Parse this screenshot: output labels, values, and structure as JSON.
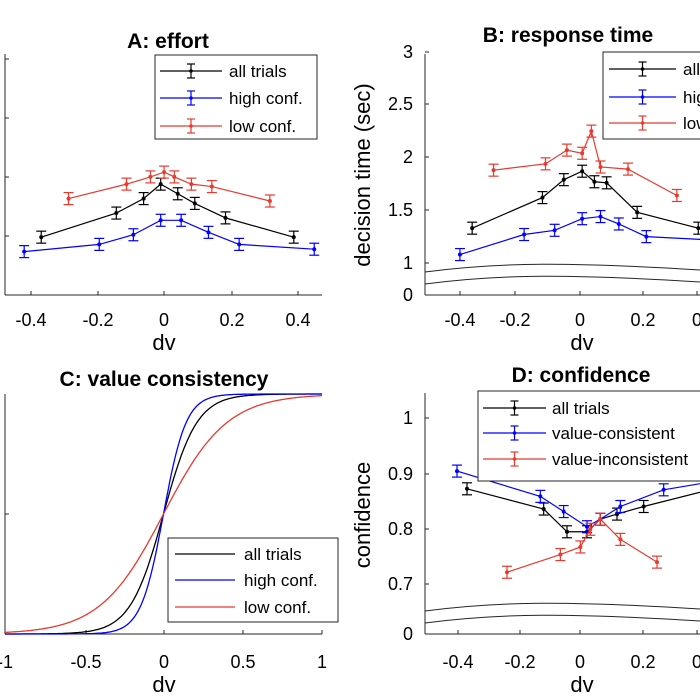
{
  "panels": {
    "A": {
      "title": "A: effort"
    },
    "B": {
      "title": "B: response time"
    },
    "C": {
      "title": "C: value consistency"
    },
    "D": {
      "title": "D: confidence"
    }
  },
  "chart_data": [
    {
      "panel": "A",
      "type": "line",
      "title": "A: effort",
      "xlabel": "dv",
      "ylabel": "",
      "xlim": [
        -0.5,
        0.5
      ],
      "ylim": [
        0,
        5
      ],
      "xticks": [
        "-0.4",
        "-0.2",
        "0",
        "0.2",
        "0.4"
      ],
      "legend_position": "top-right",
      "series": [
        {
          "name": "all trials",
          "color": "#000000",
          "x": [
            -0.37,
            -0.15,
            -0.07,
            -0.02,
            0.03,
            0.08,
            0.17,
            0.37
          ],
          "y": [
            1.2,
            1.7,
            2.0,
            2.3,
            2.1,
            1.9,
            1.6,
            1.2
          ]
        },
        {
          "name": "high conf.",
          "color": "#0000ff",
          "x": [
            -0.42,
            -0.2,
            -0.1,
            -0.02,
            0.04,
            0.12,
            0.21,
            0.43
          ],
          "y": [
            0.9,
            1.05,
            1.25,
            1.55,
            1.55,
            1.3,
            1.05,
            0.95
          ]
        },
        {
          "name": "low conf.",
          "color": "#e8392e",
          "x": [
            -0.29,
            -0.12,
            -0.05,
            -0.01,
            0.02,
            0.07,
            0.13,
            0.3
          ],
          "y": [
            2.0,
            2.3,
            2.45,
            2.55,
            2.45,
            2.3,
            2.25,
            1.95
          ]
        }
      ]
    },
    {
      "panel": "B",
      "type": "line",
      "title": "B: response time",
      "xlabel": "dv",
      "ylabel": "decision time (sec)",
      "xlim": [
        -0.5,
        0.38
      ],
      "ylim": [
        0,
        3
      ],
      "yticks": [
        "0",
        "1",
        "1.5",
        "2",
        "2.5",
        "3"
      ],
      "xticks": [
        "-0.4",
        "-0.2",
        "0",
        "0.2",
        "0"
      ],
      "axis_break": true,
      "legend_position": "top-right",
      "series": [
        {
          "name": "all trials",
          "color": "#000000",
          "x": [
            -0.37,
            -0.14,
            -0.07,
            -0.01,
            0.03,
            0.07,
            0.17,
            0.37
          ],
          "y": [
            1.33,
            1.62,
            1.79,
            1.87,
            1.77,
            1.76,
            1.48,
            1.33
          ]
        },
        {
          "name": "high conf.",
          "color": "#0000ff",
          "x": [
            -0.41,
            -0.2,
            -0.1,
            -0.01,
            0.05,
            0.11,
            0.2,
            0.4
          ],
          "y": [
            1.08,
            1.27,
            1.31,
            1.42,
            1.44,
            1.37,
            1.25,
            1.22
          ]
        },
        {
          "name": "low conf.",
          "color": "#e8392e",
          "x": [
            -0.3,
            -0.13,
            -0.06,
            -0.01,
            0.02,
            0.05,
            0.14,
            0.3
          ],
          "y": [
            1.88,
            1.94,
            2.07,
            2.04,
            2.25,
            1.91,
            1.89,
            1.64
          ]
        }
      ]
    },
    {
      "panel": "C",
      "type": "line",
      "title": "C: value consistency",
      "xlabel": "dv",
      "ylabel": "",
      "xlim": [
        -1,
        1
      ],
      "ylim": [
        0,
        1
      ],
      "xticks": [
        "-1",
        "-0.5",
        "0",
        "0.5",
        "1"
      ],
      "legend_position": "bottom-right",
      "series": [
        {
          "name": "all trials",
          "color": "#000000",
          "slope": 9.5
        },
        {
          "name": "high conf.",
          "color": "#0000ff",
          "slope": 14
        },
        {
          "name": "low conf.",
          "color": "#e8392e",
          "slope": 5
        }
      ]
    },
    {
      "panel": "D",
      "type": "line",
      "title": "D: confidence",
      "xlabel": "dv",
      "ylabel": "confidence",
      "xlim": [
        -0.5,
        0.38
      ],
      "ylim": [
        0,
        1.05
      ],
      "yticks": [
        "0",
        "0.7",
        "0.8",
        "0.9",
        "1"
      ],
      "xticks": [
        "-0.4",
        "-0.2",
        "0",
        "0.2",
        "0"
      ],
      "axis_break": true,
      "legend_position": "top-right",
      "series": [
        {
          "name": "all trials",
          "color": "#000000",
          "x": [
            -0.37,
            -0.14,
            -0.07,
            -0.01,
            0.03,
            0.08,
            0.16,
            0.4
          ],
          "y": [
            0.86,
            0.82,
            0.775,
            0.775,
            0.8,
            0.81,
            0.825,
            0.865
          ]
        },
        {
          "name": "value-consistent",
          "color": "#0000ff",
          "x": [
            -0.4,
            -0.15,
            -0.08,
            -0.01,
            0.03,
            0.09,
            0.22,
            0.4
          ],
          "y": [
            0.895,
            0.845,
            0.815,
            0.785,
            0.8,
            0.825,
            0.858,
            0.878
          ]
        },
        {
          "name": "value-inconsistent",
          "color": "#e8392e",
          "x": [
            -0.25,
            -0.09,
            -0.03,
            0.0,
            0.03,
            0.09,
            0.2
          ],
          "y": [
            0.695,
            0.73,
            0.745,
            0.78,
            0.8,
            0.76,
            0.715
          ]
        }
      ]
    }
  ]
}
